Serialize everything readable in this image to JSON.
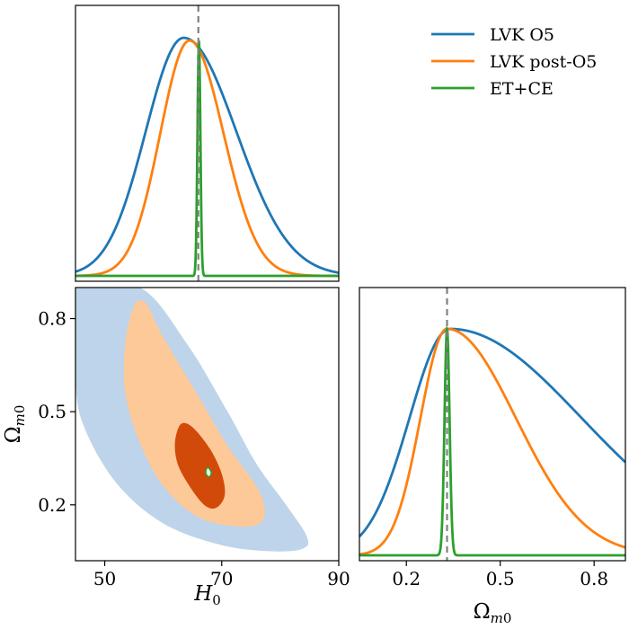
{
  "chart_data": {
    "type": "corner",
    "colors": {
      "LVK O5": "#1f77b4",
      "LVK post-O5": "#ff7f0e",
      "ET+CE": "#2ca02c",
      "truth": "#808080"
    },
    "truth": {
      "H0": 66,
      "Om": 0.33
    },
    "legend": {
      "placement": "top-right",
      "entries": [
        {
          "label": "LVK O5",
          "color": "#1f77b4"
        },
        {
          "label": "LVK post-O5",
          "color": "#ff7f0e"
        },
        {
          "label": "ET+CE",
          "color": "#2ca02c"
        }
      ]
    },
    "h0_panel": {
      "xlim": [
        45,
        90
      ],
      "series": [
        {
          "name": "LVK O5",
          "color": "#1f77b4",
          "peak": 63.5,
          "sigma_left": 6.5,
          "sigma_right": 9.0,
          "height": 0.88
        },
        {
          "name": "LVK post-O5",
          "color": "#ff7f0e",
          "peak": 64.5,
          "sigma_left": 5.0,
          "sigma_right": 5.8,
          "height": 0.87
        },
        {
          "name": "ET+CE",
          "color": "#2ca02c",
          "peak": 66.1,
          "sigma_left": 0.25,
          "sigma_right": 0.25,
          "height": 0.87
        }
      ]
    },
    "om_panel": {
      "xlim": [
        0.05,
        0.9
      ],
      "xlabel": "Ωm0",
      "xticks": [
        0.2,
        0.5,
        0.8
      ],
      "xtick_labels": [
        "0.2",
        "0.5",
        "0.8"
      ],
      "series": [
        {
          "name": "LVK O5",
          "color": "#1f77b4",
          "peak": 0.34,
          "sigma_left": 0.13,
          "sigma_right": 0.42,
          "height": 0.86
        },
        {
          "name": "LVK post-O5",
          "color": "#ff7f0e",
          "peak": 0.33,
          "sigma_left": 0.085,
          "sigma_right": 0.22,
          "height": 0.86
        },
        {
          "name": "ET+CE",
          "color": "#2ca02c",
          "peak": 0.33,
          "sigma_left": 0.008,
          "sigma_right": 0.008,
          "height": 0.86
        }
      ]
    },
    "joint_panel": {
      "xlim": [
        45,
        90
      ],
      "ylim": [
        0.02,
        0.9
      ],
      "xlabel": "H0",
      "ylabel": "Ωm0",
      "xticks": [
        50,
        70,
        90
      ],
      "xtick_labels": [
        "50",
        "70",
        "90"
      ],
      "yticks": [
        0.2,
        0.5,
        0.8
      ],
      "ytick_labels": [
        "0.2",
        "0.5",
        "0.8"
      ],
      "contours": [
        {
          "name": "LVK O5 95%",
          "color": "#bdd4ea",
          "points": [
            [
              45,
              0.9
            ],
            [
              56,
              0.9
            ],
            [
              64,
              0.72
            ],
            [
              71,
              0.5
            ],
            [
              76,
              0.33
            ],
            [
              81,
              0.2
            ],
            [
              84.5,
              0.1
            ],
            [
              84,
              0.06
            ],
            [
              79,
              0.05
            ],
            [
              70,
              0.07
            ],
            [
              60,
              0.14
            ],
            [
              52,
              0.27
            ],
            [
              46.5,
              0.45
            ],
            [
              45,
              0.6
            ]
          ]
        },
        {
          "name": "LVK post-O5 95%",
          "color": "#fdc999",
          "points": [
            [
              55,
              0.84
            ],
            [
              57,
              0.85
            ],
            [
              60,
              0.74
            ],
            [
              66,
              0.55
            ],
            [
              71,
              0.39
            ],
            [
              76.5,
              0.24
            ],
            [
              77,
              0.15
            ],
            [
              73,
              0.13
            ],
            [
              66,
              0.16
            ],
            [
              60,
              0.26
            ],
            [
              56,
              0.4
            ],
            [
              53.5,
              0.56
            ],
            [
              53.5,
              0.72
            ]
          ]
        },
        {
          "name": "LVK post-O5 68%",
          "color": "#d24a0a",
          "points": [
            [
              63,
              0.46
            ],
            [
              65,
              0.45
            ],
            [
              68,
              0.38
            ],
            [
              70,
              0.3
            ],
            [
              70.5,
              0.23
            ],
            [
              69,
              0.19
            ],
            [
              67,
              0.2
            ],
            [
              64.5,
              0.26
            ],
            [
              62.5,
              0.33
            ],
            [
              62,
              0.4
            ]
          ]
        },
        {
          "name": "ET+CE 95%",
          "color": "#2ca02c",
          "points": [
            [
              67.6,
              0.32
            ],
            [
              68.1,
              0.31
            ],
            [
              68.2,
              0.3
            ],
            [
              67.8,
              0.29
            ],
            [
              67.3,
              0.3
            ],
            [
              67.3,
              0.31
            ]
          ]
        }
      ]
    }
  }
}
